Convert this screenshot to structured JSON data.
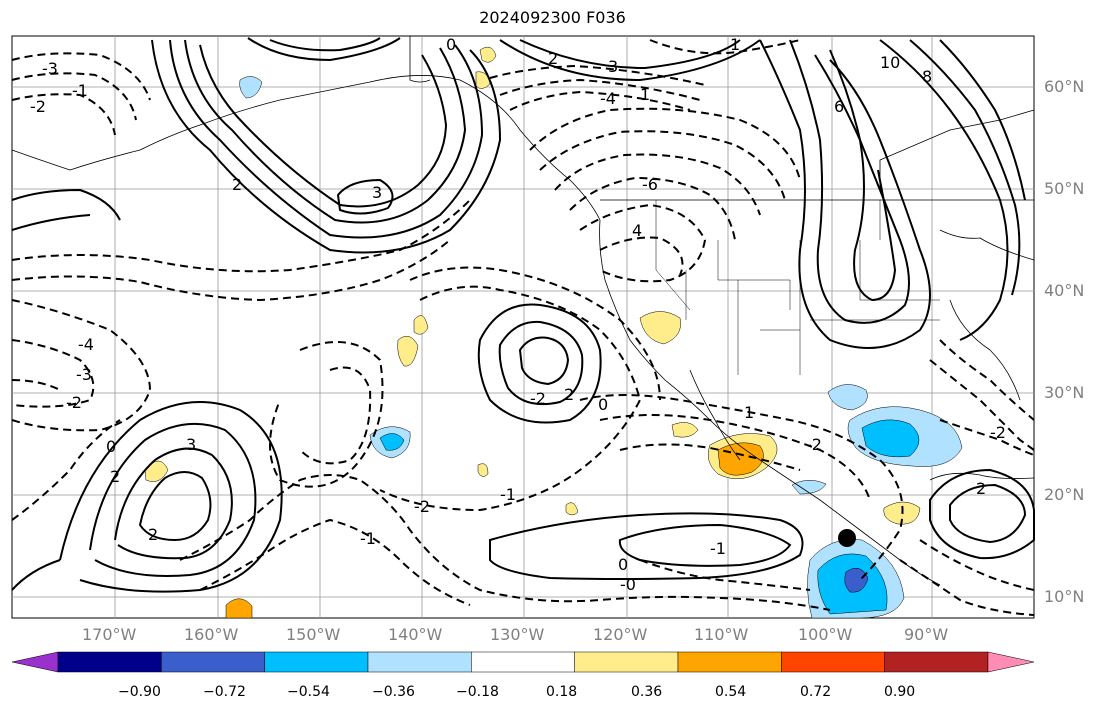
{
  "title": "2024092300 F036",
  "map": {
    "lon_labels": [
      "170°W",
      "160°W",
      "150°W",
      "140°W",
      "130°W",
      "120°W",
      "110°W",
      "100°W",
      "90°W"
    ],
    "lat_labels": [
      "60°N",
      "50°N",
      "40°N",
      "30°N",
      "20°N",
      "10°N"
    ],
    "marker_color": "#000000",
    "contour_labels": [
      "0",
      "2",
      "3",
      "1",
      "-2",
      "-1",
      "-3",
      "-4",
      "10",
      "8",
      "6",
      "-6",
      "4",
      "3",
      "2",
      "1",
      "-1",
      "0",
      "-2",
      "-3",
      "-4",
      "3",
      "2",
      "0",
      "2",
      "-2",
      "-1",
      "1",
      "-1",
      "-2",
      "-2",
      "2",
      "0",
      "-0",
      "-2",
      "2"
    ]
  },
  "colorbar": {
    "ticks": [
      "−0.90",
      "−0.72",
      "−0.54",
      "−0.36",
      "−0.18",
      "0.18",
      "0.36",
      "0.54",
      "0.72",
      "0.90"
    ],
    "colors": [
      "#9932cc",
      "#00008b",
      "#3a5fcd",
      "#00bfff",
      "#b0e2ff",
      "#ffffff",
      "#ffec8b",
      "#ffa500",
      "#ff4500",
      "#b22222",
      "#ff8cb4"
    ]
  }
}
